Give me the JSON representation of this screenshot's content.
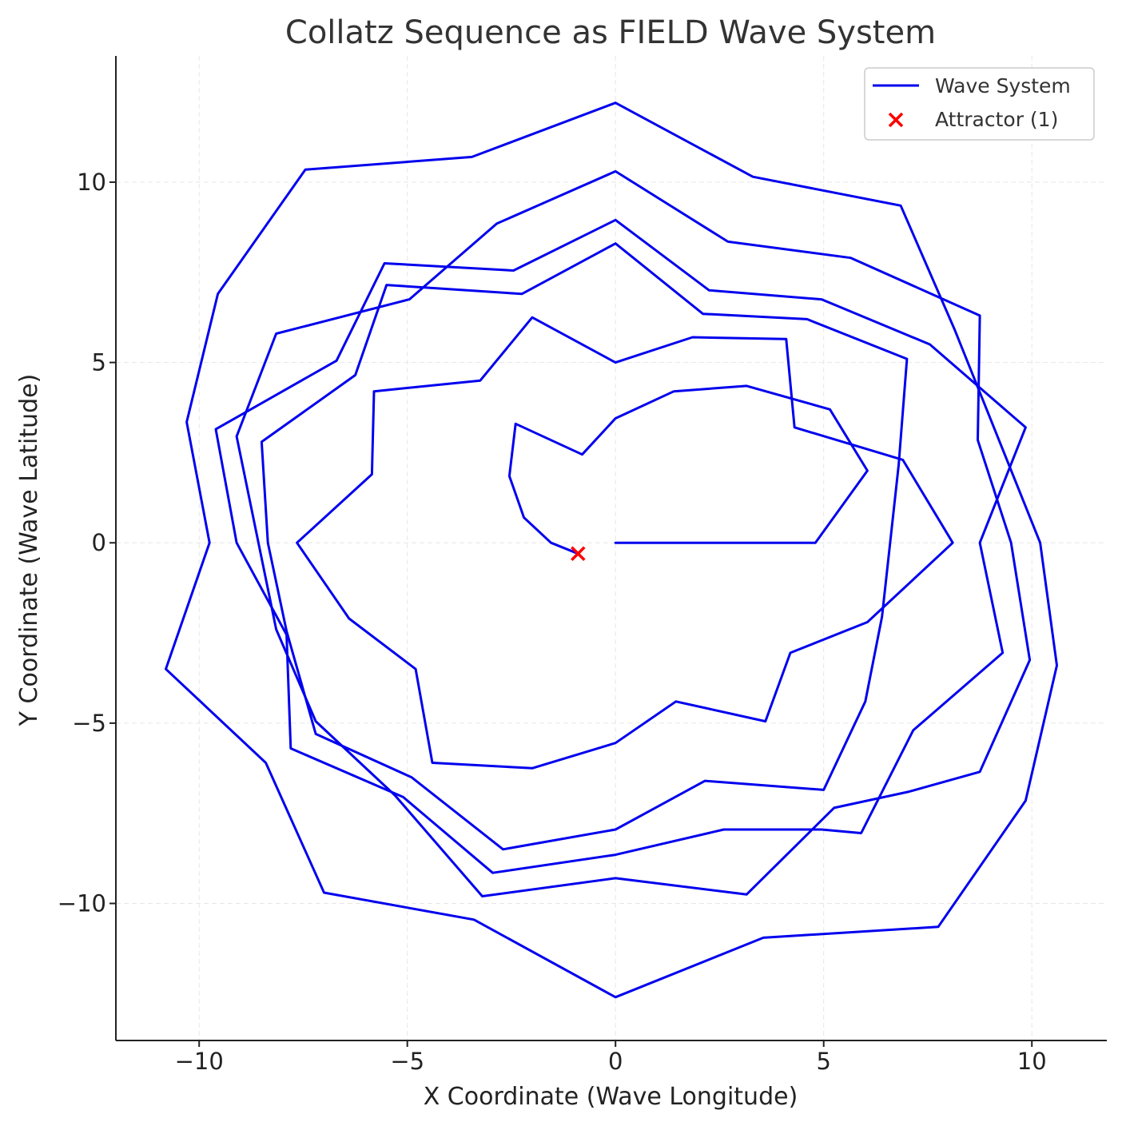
{
  "chart_data": {
    "type": "line",
    "title": "Collatz Sequence as FIELD Wave System",
    "xlabel": "X Coordinate (Wave Longitude)",
    "ylabel": "Y Coordinate (Wave Latitude)",
    "xlim": [
      -12,
      11.8
    ],
    "ylim": [
      -13.8,
      13.5
    ],
    "xticks": [
      -10,
      -5,
      0,
      5,
      10
    ],
    "yticks": [
      -10,
      -5,
      0,
      5,
      10
    ],
    "xtick_labels": [
      "−10",
      "−5",
      "0",
      "5",
      "10"
    ],
    "ytick_labels": [
      "−10",
      "−5",
      "0",
      "5",
      "10"
    ],
    "grid": true,
    "legend_position": "top-right",
    "colors": {
      "series": "#0000ee",
      "attractor": "#ff0000"
    },
    "series": [
      {
        "name": "Wave System",
        "x": [
          0,
          4.8,
          6.05,
          5.15,
          3.15,
          1.4,
          0,
          -0.8,
          -2.4,
          -2.55,
          -2.2,
          -1.55,
          -0.9
        ],
        "y": [
          0,
          0,
          2.0,
          3.7,
          4.35,
          4.2,
          3.45,
          2.45,
          3.3,
          1.85,
          0.7,
          0.0,
          -0.3
        ]
      },
      {
        "name": "Attractor (1)",
        "marker": "x",
        "x": [
          -0.9
        ],
        "y": [
          -0.3
        ]
      }
    ],
    "path": {
      "x": [
        0,
        4.8,
        6.05,
        5.15,
        3.15,
        1.4,
        0,
        -0.8,
        -2.4,
        -2.55,
        -2.2,
        -1.55,
        -0.9
      ],
      "y": [
        0,
        0,
        2.0,
        3.7,
        4.35,
        4.2,
        3.45,
        2.45,
        3.3,
        1.85,
        0.7,
        0.0,
        -0.3
      ]
    },
    "rings": [
      {
        "x": [
          0,
          1.85,
          4.1,
          4.3,
          6.9,
          8.1,
          6.05,
          4.2,
          3.6,
          1.45,
          0,
          -2,
          -4.4,
          -4.8,
          -6.4,
          -7.65,
          -5.85,
          -5.8,
          -3.25,
          -2.0,
          0
        ],
        "y": [
          5.0,
          5.7,
          5.65,
          3.2,
          2.3,
          0,
          -2.2,
          -3.05,
          -4.95,
          -4.4,
          -5.55,
          -6.25,
          -6.1,
          -3.5,
          -2.1,
          0,
          1.9,
          4.2,
          4.5,
          6.25,
          5.0
        ]
      },
      {
        "x": [
          0,
          2.1,
          4.6,
          7.0,
          6.8,
          6.4,
          6.0,
          5.0,
          2.15,
          0,
          -2.7,
          -4.9,
          -7.2,
          -7.9,
          -8.35,
          -8.5,
          -6.25,
          -5.5,
          -2.25,
          0
        ],
        "y": [
          8.3,
          6.35,
          6.2,
          5.1,
          2.15,
          -2.05,
          -4.4,
          -6.85,
          -6.6,
          -7.95,
          -8.5,
          -6.5,
          -5.3,
          -2.45,
          0,
          2.8,
          4.65,
          7.15,
          6.9,
          8.3
        ]
      },
      {
        "x": [
          0,
          2.25,
          4.95,
          7.55,
          9.85,
          8.75,
          9.3,
          7.15,
          5.9,
          4.95,
          2.6,
          0,
          -2.95,
          -5.1,
          -7.8,
          -7.9,
          -9.1,
          -9.6,
          -6.7,
          -5.55,
          -2.45,
          0
        ],
        "y": [
          8.95,
          7.0,
          6.75,
          5.5,
          3.2,
          0,
          -3.05,
          -5.2,
          -8.05,
          -7.95,
          -7.95,
          -8.65,
          -9.15,
          -7.05,
          -5.7,
          -2.55,
          0,
          3.15,
          5.05,
          7.75,
          7.55,
          8.95
        ]
      },
      {
        "x": [
          0,
          2.7,
          5.65,
          8.75,
          8.7,
          9.5,
          9.95,
          8.75,
          7.05,
          5.25,
          3.15,
          0,
          -3.2,
          -5.3,
          -7.2,
          -8.15,
          -9.1,
          -8.15,
          -4.95,
          -2.85,
          0
        ],
        "y": [
          10.3,
          8.35,
          7.9,
          6.3,
          2.85,
          0,
          -3.25,
          -6.35,
          -6.9,
          -7.35,
          -9.75,
          -9.3,
          -9.8,
          -7.0,
          -4.95,
          -2.4,
          2.95,
          5.8,
          6.75,
          8.85,
          10.3
        ]
      },
      {
        "x": [
          0,
          -3.45,
          -7.45,
          -9.55,
          -10.3,
          -9.75,
          -10.8,
          -8.4,
          -7.0,
          -3.4,
          0,
          3.55,
          7.75,
          9.85,
          10.6,
          10.2,
          8.15,
          6.85,
          3.3,
          0
        ],
        "y": [
          12.2,
          10.7,
          10.35,
          6.9,
          3.35,
          0,
          -3.5,
          -6.1,
          -9.7,
          -10.45,
          -12.6,
          -10.95,
          -10.65,
          -7.15,
          -3.4,
          0,
          5.9,
          9.35,
          10.15,
          12.2
        ]
      }
    ]
  }
}
